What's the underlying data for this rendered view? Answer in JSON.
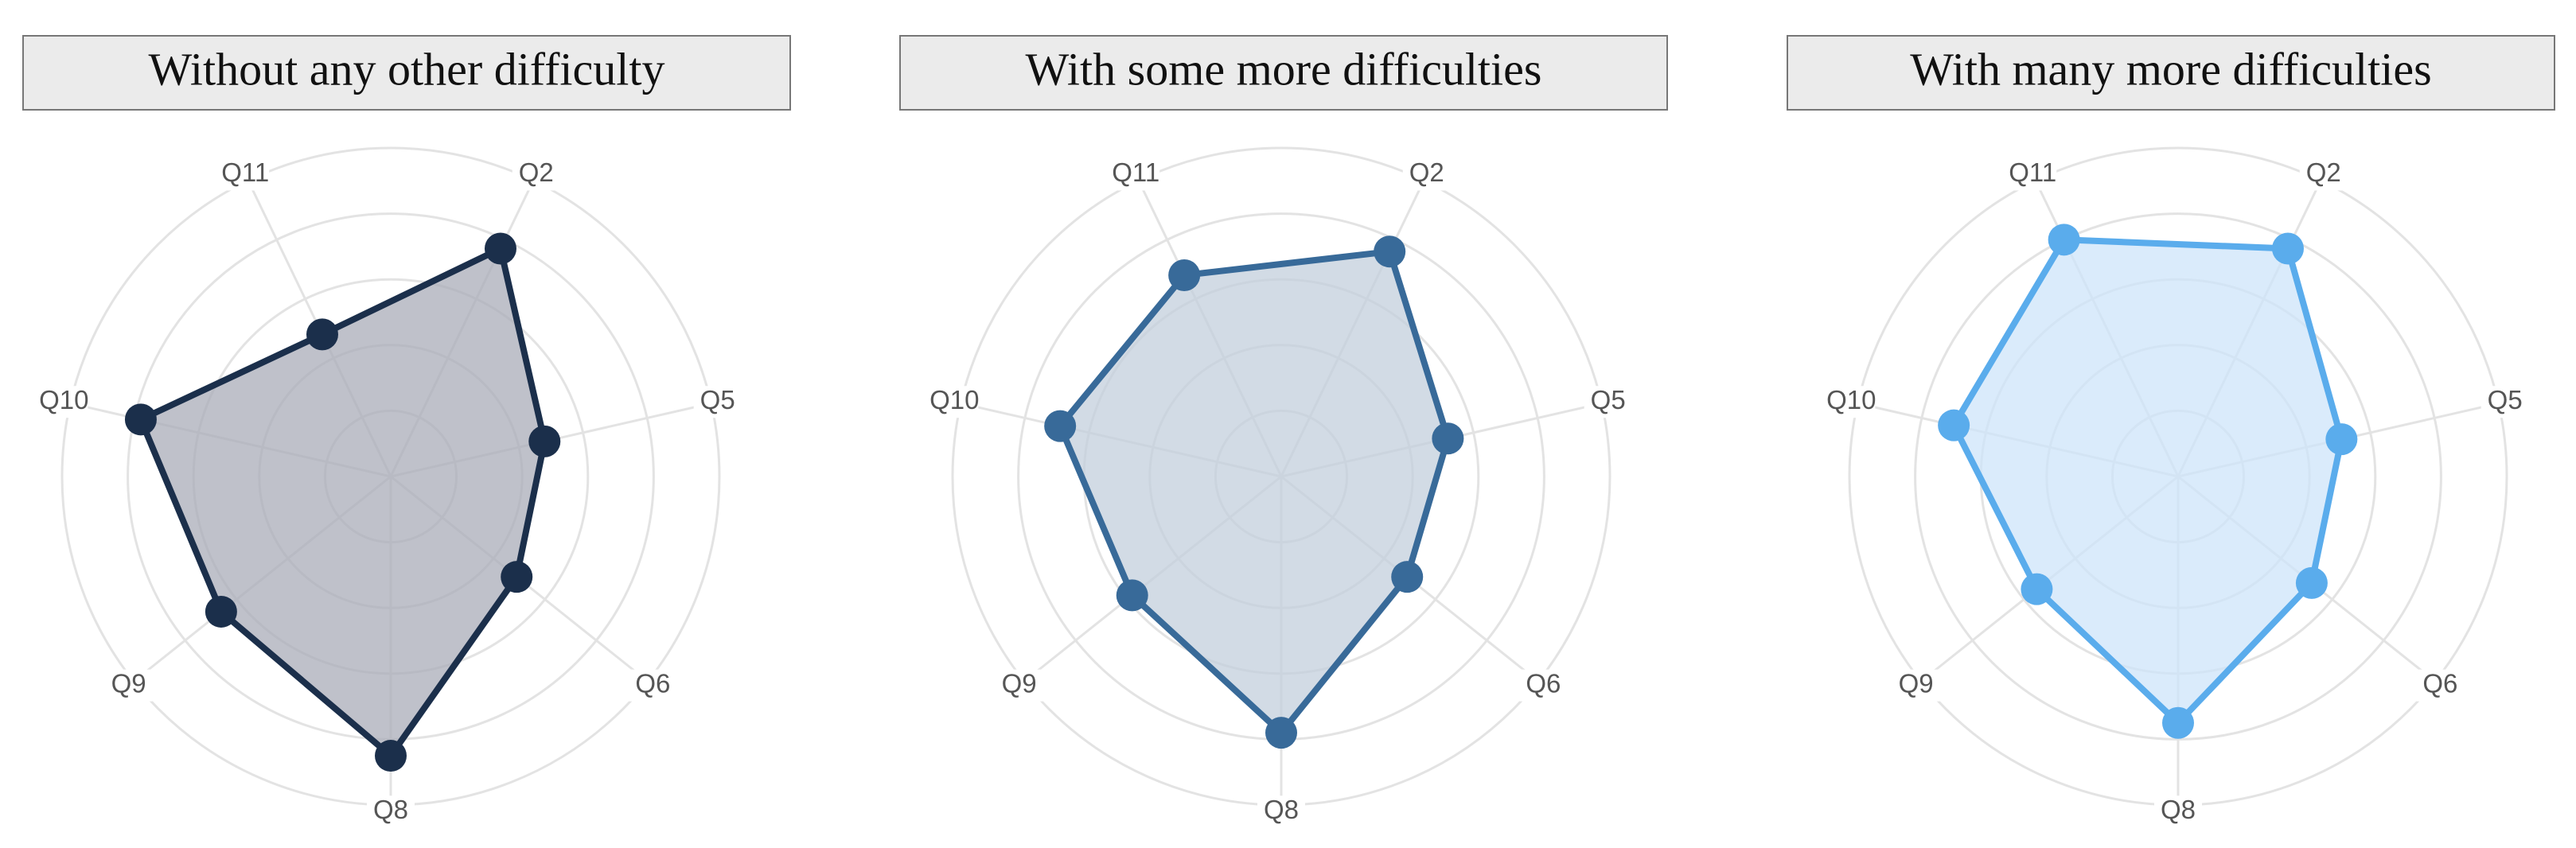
{
  "chart_data": [
    {
      "type": "radar",
      "title": "Without any other difficulty",
      "categories": [
        "Q2",
        "Q5",
        "Q6",
        "Q8",
        "Q9",
        "Q10",
        "Q11"
      ],
      "values": [
        3.85,
        2.4,
        2.45,
        4.25,
        3.3,
        3.9,
        2.4
      ],
      "color": "#1b2f4b",
      "fill": "#a9acb8",
      "rlim": [
        0,
        5
      ],
      "rticks": [
        1,
        2,
        3,
        4,
        5
      ],
      "grid": true
    },
    {
      "type": "radar",
      "title": "With some more difficulties",
      "categories": [
        "Q2",
        "Q5",
        "Q6",
        "Q8",
        "Q9",
        "Q10",
        "Q11"
      ],
      "values": [
        3.8,
        2.6,
        2.45,
        3.9,
        2.9,
        3.45,
        3.4
      ],
      "color": "#386a99",
      "fill": "#c3cfdc",
      "rlim": [
        0,
        5
      ],
      "rticks": [
        1,
        2,
        3,
        4,
        5
      ],
      "grid": true
    },
    {
      "type": "radar",
      "title": "With many more difficulties",
      "categories": [
        "Q2",
        "Q5",
        "Q6",
        "Q8",
        "Q9",
        "Q10",
        "Q11"
      ],
      "values": [
        3.85,
        2.55,
        2.6,
        3.75,
        2.75,
        3.5,
        4.0
      ],
      "color": "#5aacec",
      "fill": "#cde4fa",
      "rlim": [
        0,
        5
      ],
      "rticks": [
        1,
        2,
        3,
        4,
        5
      ],
      "grid": true
    }
  ]
}
